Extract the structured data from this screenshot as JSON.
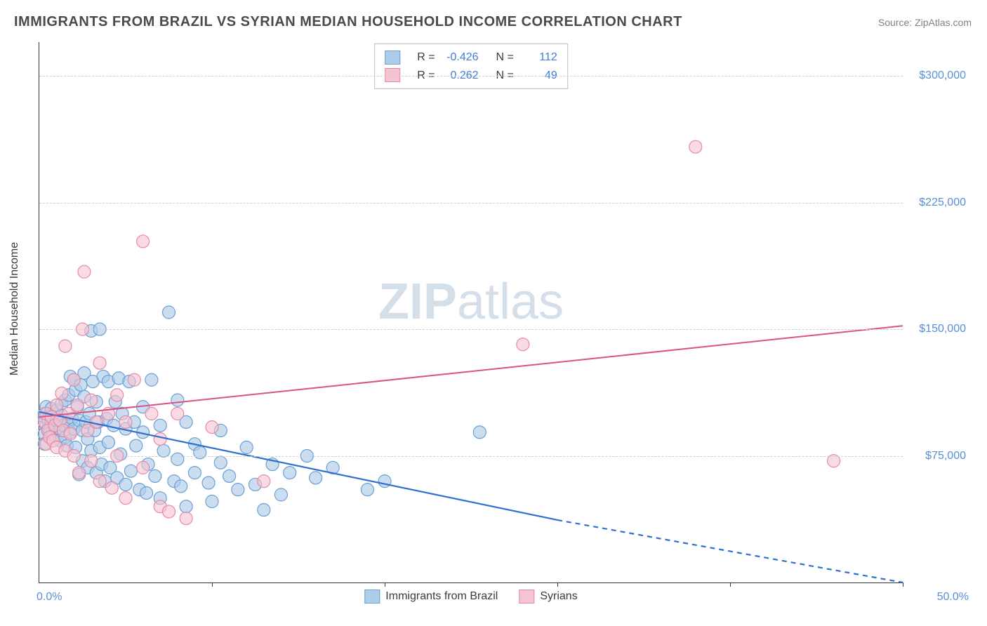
{
  "title": "IMMIGRANTS FROM BRAZIL VS SYRIAN MEDIAN HOUSEHOLD INCOME CORRELATION CHART",
  "source_label": "Source: ",
  "source_value": "ZipAtlas.com",
  "y_axis_label": "Median Household Income",
  "watermark_bold": "ZIP",
  "watermark_light": "atlas",
  "chart": {
    "type": "scatter-correlation",
    "background_color": "#ffffff",
    "grid_color": "#cfcfcf",
    "axis_color": "#333333",
    "label_color": "#5a8fd6",
    "title_fontsize": 20,
    "label_fontsize": 16,
    "tick_fontsize": 16,
    "x": {
      "min": 0,
      "max": 50,
      "unit": "%",
      "min_label": "0.0%",
      "max_label": "50.0%",
      "ticks_pct": [
        0,
        10,
        20,
        30,
        40,
        50
      ]
    },
    "y": {
      "min": 0,
      "max": 320000,
      "unit": "$",
      "gridlines": [
        75000,
        150000,
        225000,
        300000
      ],
      "gridline_labels": [
        "$75,000",
        "$150,000",
        "$225,000",
        "$300,000"
      ]
    },
    "series": [
      {
        "id": "brazil",
        "name": "Immigrants from Brazil",
        "marker_fill": "#aecde8",
        "marker_stroke": "#6a9fd4",
        "marker_fill_opacity": 0.65,
        "marker_radius": 9,
        "line_color": "#2f6fd0",
        "line_width": 2.2,
        "R": -0.426,
        "R_label": "-0.426",
        "N": 112,
        "N_label": "112",
        "trend": {
          "x1": 0,
          "y1": 101000,
          "x2_solid": 30,
          "y2_solid": 37000,
          "x2_dash": 50,
          "y2_dash": 0
        },
        "points": [
          [
            0.3,
            98000
          ],
          [
            0.3,
            100000
          ],
          [
            0.3,
            88000
          ],
          [
            0.3,
            82000
          ],
          [
            0.4,
            93000
          ],
          [
            0.4,
            104000
          ],
          [
            0.5,
            97000
          ],
          [
            0.5,
            91000
          ],
          [
            0.6,
            90000
          ],
          [
            0.6,
            99000
          ],
          [
            0.7,
            103000
          ],
          [
            0.7,
            95000
          ],
          [
            0.8,
            87000
          ],
          [
            0.9,
            94000
          ],
          [
            1.0,
            96000
          ],
          [
            1.0,
            102000
          ],
          [
            1.1,
            88000
          ],
          [
            1.2,
            91000
          ],
          [
            1.2,
            84000
          ],
          [
            1.3,
            99000
          ],
          [
            1.3,
            106000
          ],
          [
            1.4,
            93000
          ],
          [
            1.5,
            86000
          ],
          [
            1.5,
            108000
          ],
          [
            1.6,
            81000
          ],
          [
            1.7,
            95000
          ],
          [
            1.7,
            111000
          ],
          [
            1.8,
            122000
          ],
          [
            1.8,
            89000
          ],
          [
            1.9,
            97000
          ],
          [
            2.0,
            120000
          ],
          [
            2.0,
            91000
          ],
          [
            2.1,
            114000
          ],
          [
            2.1,
            80000
          ],
          [
            2.2,
            104000
          ],
          [
            2.3,
            96000
          ],
          [
            2.3,
            64000
          ],
          [
            2.4,
            117000
          ],
          [
            2.5,
            90000
          ],
          [
            2.5,
            72000
          ],
          [
            2.6,
            110000
          ],
          [
            2.6,
            124000
          ],
          [
            2.7,
            95000
          ],
          [
            2.8,
            85000
          ],
          [
            2.8,
            68000
          ],
          [
            2.9,
            100000
          ],
          [
            3.0,
            149000
          ],
          [
            3.0,
            78000
          ],
          [
            3.1,
            119000
          ],
          [
            3.2,
            90000
          ],
          [
            3.3,
            65000
          ],
          [
            3.3,
            107000
          ],
          [
            3.4,
            95000
          ],
          [
            3.5,
            150000
          ],
          [
            3.5,
            80000
          ],
          [
            3.6,
            70000
          ],
          [
            3.7,
            122000
          ],
          [
            3.8,
            60000
          ],
          [
            3.9,
            97000
          ],
          [
            4.0,
            119000
          ],
          [
            4.0,
            83000
          ],
          [
            4.1,
            68000
          ],
          [
            4.3,
            93000
          ],
          [
            4.4,
            107000
          ],
          [
            4.5,
            62000
          ],
          [
            4.6,
            121000
          ],
          [
            4.7,
            76000
          ],
          [
            4.8,
            100000
          ],
          [
            5.0,
            91000
          ],
          [
            5.0,
            58000
          ],
          [
            5.2,
            119000
          ],
          [
            5.3,
            66000
          ],
          [
            5.5,
            95000
          ],
          [
            5.6,
            81000
          ],
          [
            5.8,
            55000
          ],
          [
            6.0,
            89000
          ],
          [
            6.0,
            104000
          ],
          [
            6.2,
            53000
          ],
          [
            6.3,
            70000
          ],
          [
            6.5,
            120000
          ],
          [
            6.7,
            63000
          ],
          [
            7.0,
            93000
          ],
          [
            7.0,
            50000
          ],
          [
            7.2,
            78000
          ],
          [
            7.5,
            160000
          ],
          [
            7.8,
            60000
          ],
          [
            8.0,
            108000
          ],
          [
            8.0,
            73000
          ],
          [
            8.2,
            57000
          ],
          [
            8.5,
            95000
          ],
          [
            8.5,
            45000
          ],
          [
            9.0,
            82000
          ],
          [
            9.0,
            65000
          ],
          [
            9.3,
            77000
          ],
          [
            9.8,
            59000
          ],
          [
            10.0,
            48000
          ],
          [
            10.5,
            71000
          ],
          [
            10.5,
            90000
          ],
          [
            11.0,
            63000
          ],
          [
            11.5,
            55000
          ],
          [
            12.0,
            80000
          ],
          [
            12.5,
            58000
          ],
          [
            13.0,
            43000
          ],
          [
            13.5,
            70000
          ],
          [
            14.0,
            52000
          ],
          [
            14.5,
            65000
          ],
          [
            15.5,
            75000
          ],
          [
            16.0,
            62000
          ],
          [
            17.0,
            68000
          ],
          [
            19.0,
            55000
          ],
          [
            20.0,
            60000
          ],
          [
            25.5,
            89000
          ]
        ]
      },
      {
        "id": "syrians",
        "name": "Syrians",
        "marker_fill": "#f6c3d1",
        "marker_stroke": "#e48aa7",
        "marker_fill_opacity": 0.6,
        "marker_radius": 9,
        "line_color": "#d95383",
        "line_width": 2,
        "R": 0.262,
        "R_label": "0.262",
        "N": 49,
        "N_label": "49",
        "trend": {
          "x1": 0,
          "y1": 98000,
          "x2_solid": 50,
          "y2_solid": 152000
        },
        "points": [
          [
            0.3,
            95000
          ],
          [
            0.4,
            100000
          ],
          [
            0.4,
            82000
          ],
          [
            0.5,
            90000
          ],
          [
            0.6,
            86000
          ],
          [
            0.7,
            98000
          ],
          [
            0.8,
            84000
          ],
          [
            0.9,
            93000
          ],
          [
            1.0,
            80000
          ],
          [
            1.0,
            105000
          ],
          [
            1.2,
            96000
          ],
          [
            1.3,
            112000
          ],
          [
            1.4,
            90000
          ],
          [
            1.5,
            78000
          ],
          [
            1.5,
            140000
          ],
          [
            1.7,
            100000
          ],
          [
            1.8,
            88000
          ],
          [
            2.0,
            120000
          ],
          [
            2.0,
            75000
          ],
          [
            2.2,
            105000
          ],
          [
            2.3,
            65000
          ],
          [
            2.5,
            150000
          ],
          [
            2.6,
            184000
          ],
          [
            2.8,
            90000
          ],
          [
            3.0,
            72000
          ],
          [
            3.0,
            108000
          ],
          [
            3.3,
            95000
          ],
          [
            3.5,
            60000
          ],
          [
            3.5,
            130000
          ],
          [
            4.0,
            100000
          ],
          [
            4.2,
            56000
          ],
          [
            4.5,
            111000
          ],
          [
            4.5,
            75000
          ],
          [
            5.0,
            95000
          ],
          [
            5.0,
            50000
          ],
          [
            5.5,
            120000
          ],
          [
            6.0,
            68000
          ],
          [
            6.0,
            202000
          ],
          [
            6.5,
            100000
          ],
          [
            7.0,
            45000
          ],
          [
            7.0,
            85000
          ],
          [
            7.5,
            42000
          ],
          [
            8.0,
            100000
          ],
          [
            8.5,
            38000
          ],
          [
            10.0,
            92000
          ],
          [
            28.0,
            141000
          ],
          [
            38.0,
            258000
          ],
          [
            46.0,
            72000
          ],
          [
            13.0,
            60000
          ]
        ]
      }
    ]
  }
}
